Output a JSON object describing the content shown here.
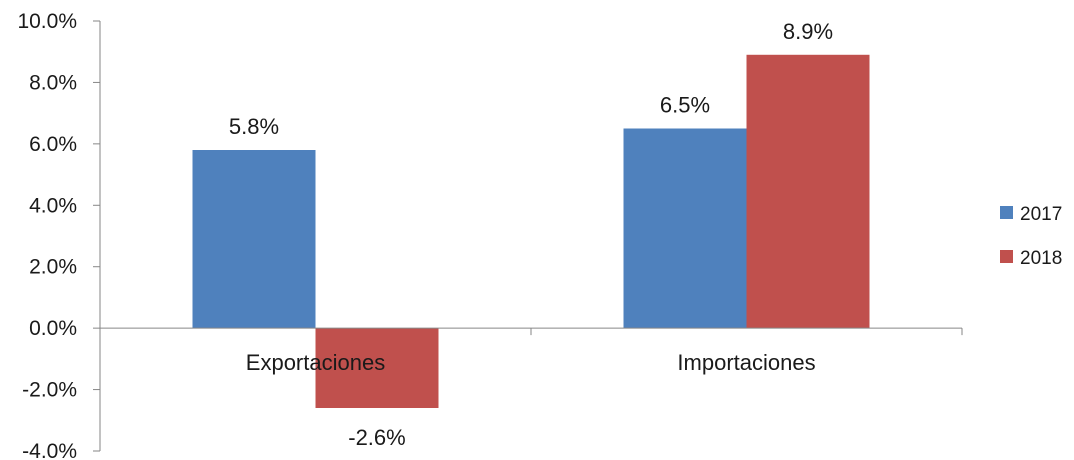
{
  "chart_data": {
    "type": "bar",
    "categories": [
      "Exportaciones",
      "Importaciones"
    ],
    "series": [
      {
        "name": "2017",
        "values": [
          5.8,
          6.5
        ],
        "labels": [
          "5.8%",
          "6.5%"
        ],
        "color": "#4f81bd"
      },
      {
        "name": "2018",
        "values": [
          -2.6,
          8.9
        ],
        "labels": [
          "-2.6%",
          "8.9%"
        ],
        "color": "#c0504d"
      }
    ],
    "ylim": [
      -4.0,
      10.0
    ],
    "yticks": [
      10.0,
      8.0,
      6.0,
      4.0,
      2.0,
      0.0,
      -2.0,
      -4.0
    ],
    "ytick_labels": [
      "10.0%",
      "8.0%",
      "6.0%",
      "4.0%",
      "2.0%",
      "0.0%",
      "-2.0%",
      "-4.0%"
    ],
    "title": "",
    "xlabel": "",
    "ylabel": "",
    "grid": false,
    "legend_position": "right",
    "axis_color": "#868686"
  }
}
